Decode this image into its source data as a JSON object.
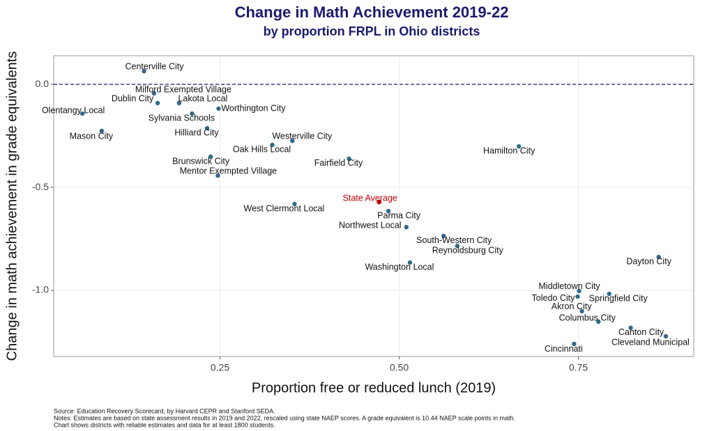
{
  "chart_data": {
    "type": "scatter",
    "title": "Change in Math Achievement 2019-22",
    "subtitle": "by proportion FRPL in Ohio districts",
    "x_label": "Proportion free or reduced lunch (2019)",
    "y_label": "Change in math achievement in grade equivalents",
    "xlim": [
      0.018,
      0.911
    ],
    "ylim": [
      -1.321,
      0.139
    ],
    "xticks": [
      {
        "value": 0.25,
        "label": "0.25"
      },
      {
        "value": 0.5,
        "label": "0.50"
      },
      {
        "value": 0.75,
        "label": "0.75"
      }
    ],
    "yticks": [
      {
        "value": 0,
        "label": "0.0"
      },
      -0.5,
      {
        "value": -1,
        "label": "-1.0"
      }
    ],
    "grid": true,
    "hline": 0,
    "hline_color": "#1a1a6e",
    "color": "#2e6a8c",
    "points": [
      {
        "label": "Centerville City",
        "x": 0.144,
        "y": 0.064
      },
      {
        "label": "Milford Exempted Village",
        "x": 0.158,
        "y": -0.044
      },
      {
        "label": "Dublin City",
        "x": 0.163,
        "y": -0.091
      },
      {
        "label": "Lakota Local",
        "x": 0.193,
        "y": -0.091
      },
      {
        "label": "Worthington City",
        "x": 0.248,
        "y": -0.118
      },
      {
        "label": "Olentangy Local",
        "x": 0.058,
        "y": -0.142
      },
      {
        "label": "Sylvania Schools",
        "x": 0.211,
        "y": -0.142
      },
      {
        "label": "Hilliard City",
        "x": 0.232,
        "y": -0.213
      },
      {
        "label": "Mason City",
        "x": 0.085,
        "y": -0.226
      },
      {
        "label": "Westerville City",
        "x": 0.351,
        "y": -0.274
      },
      {
        "label": "Oak Hills Local",
        "x": 0.323,
        "y": -0.294
      },
      {
        "label": "Hamilton City",
        "x": 0.667,
        "y": -0.301
      },
      {
        "label": "Brunswick City",
        "x": 0.237,
        "y": -0.351
      },
      {
        "label": "Fairfield City",
        "x": 0.43,
        "y": -0.361
      },
      {
        "label": "Mentor Exempted Village",
        "x": 0.247,
        "y": -0.443
      },
      {
        "label": "West Clermont Local",
        "x": 0.354,
        "y": -0.581
      },
      {
        "label": "Parma City",
        "x": 0.485,
        "y": -0.615
      },
      {
        "label": "Northwest Local",
        "x": 0.51,
        "y": -0.693
      },
      {
        "label": "South-Western City",
        "x": 0.562,
        "y": -0.736
      },
      {
        "label": "Reynoldsburg City",
        "x": 0.581,
        "y": -0.784
      },
      {
        "label": "Dayton City",
        "x": 0.862,
        "y": -0.838
      },
      {
        "label": "Washington Local",
        "x": 0.515,
        "y": -0.865
      },
      {
        "label": "Middletown City",
        "x": 0.751,
        "y": -1.003
      },
      {
        "label": "Springfield City",
        "x": 0.793,
        "y": -1.017
      },
      {
        "label": "Toledo City",
        "x": 0.749,
        "y": -1.03
      },
      {
        "label": "Akron City",
        "x": 0.755,
        "y": -1.101
      },
      {
        "label": "Columbus City",
        "x": 0.778,
        "y": -1.152
      },
      {
        "label": "Canton City",
        "x": 0.823,
        "y": -1.182
      },
      {
        "label": "Cleveland Municipal",
        "x": 0.872,
        "y": -1.223
      },
      {
        "label": "Cincinnati",
        "x": 0.744,
        "y": -1.26
      }
    ],
    "highlight": {
      "label": "State Average",
      "x": 0.472,
      "y": -0.571,
      "color": "#c00000"
    },
    "notes": [
      "Source: Education Recovery Scorecard, by Harvard CEPR and Stanford SEDA.",
      "Notes: Estimates are based on state assessment results in 2019 and 2022, rescaled using state NAEP scores. A grade equivalent is 10.44 NAEP scale points in math.",
      "Chart shows districts with reliable estimates and data for at least 1800 students."
    ]
  }
}
